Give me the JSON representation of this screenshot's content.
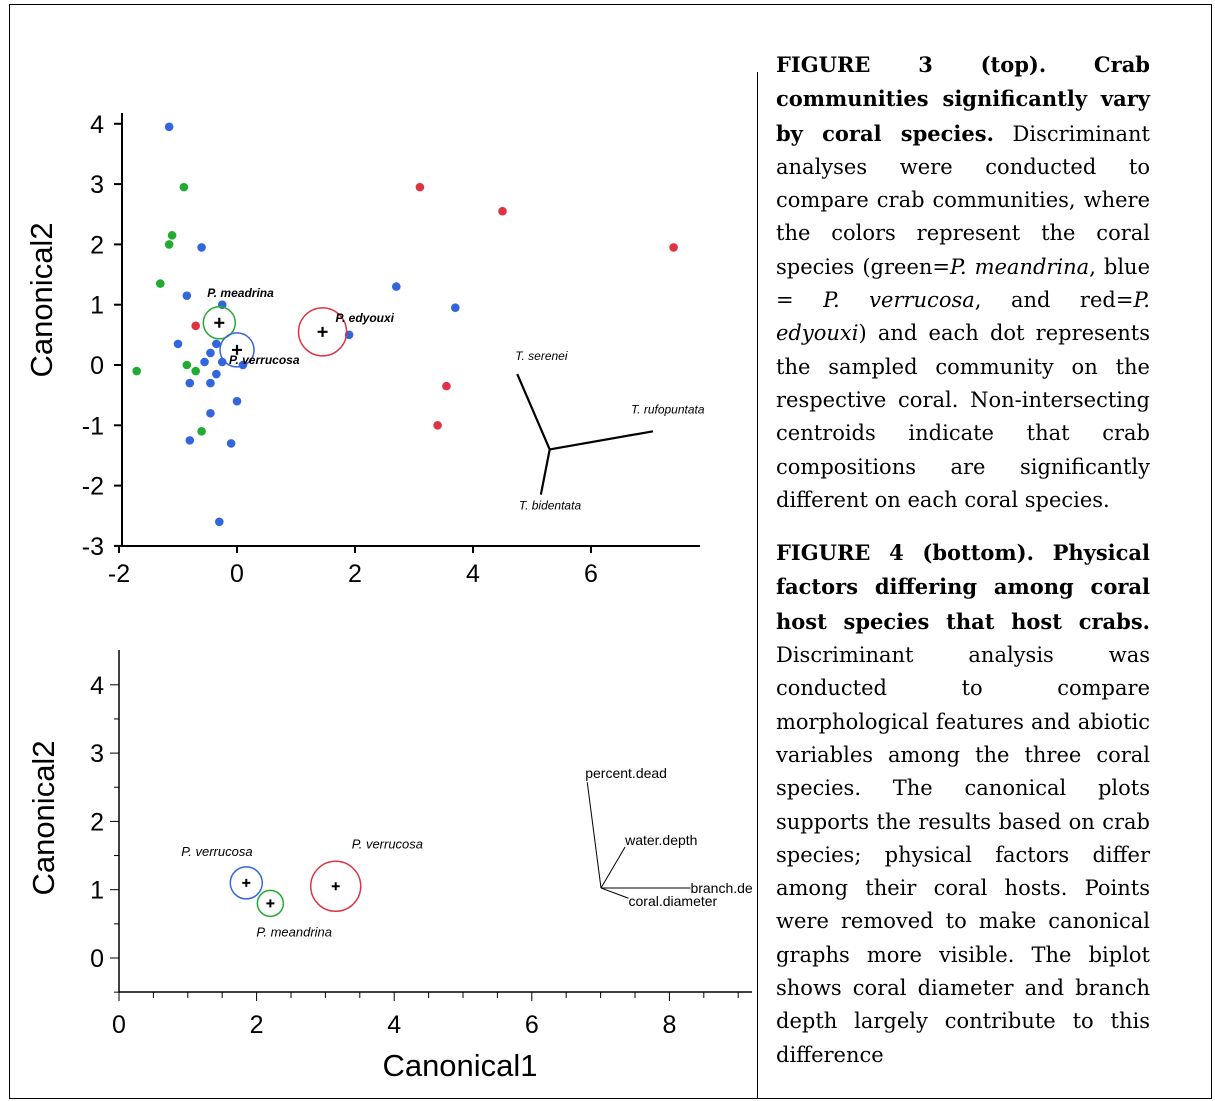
{
  "chart_data": [
    {
      "type": "scatter",
      "title": "",
      "xlabel": "",
      "ylabel": "Canonical2",
      "xlim": [
        -2,
        7.5
      ],
      "ylim": [
        -3,
        4.3
      ],
      "xticks": [
        "-2",
        "0",
        "2",
        "4",
        "6"
      ],
      "yticks": [
        "4",
        "3",
        "2",
        "1",
        "0",
        "-1",
        "-2",
        "-3"
      ],
      "grid": false,
      "colors": {
        "P. meandrina": "#22aa33",
        "P. verrucosa": "#3366dd",
        "P. edyouxi": "#dd3344"
      },
      "series": [
        {
          "name": "P. meandrina",
          "color": "#22aa33",
          "points": [
            [
              -1.7,
              -0.1
            ],
            [
              -1.3,
              1.35
            ],
            [
              -1.15,
              2.0
            ],
            [
              -1.1,
              2.15
            ],
            [
              -0.9,
              2.95
            ],
            [
              -0.85,
              0.0
            ],
            [
              -0.7,
              -0.1
            ],
            [
              -0.6,
              -1.1
            ]
          ]
        },
        {
          "name": "P. verrucosa",
          "color": "#3366dd",
          "points": [
            [
              -1.15,
              3.95
            ],
            [
              -1.0,
              0.35
            ],
            [
              -0.85,
              1.15
            ],
            [
              -0.8,
              -0.3
            ],
            [
              -0.8,
              -1.25
            ],
            [
              -0.6,
              1.95
            ],
            [
              -0.55,
              0.05
            ],
            [
              -0.45,
              0.2
            ],
            [
              -0.45,
              -0.3
            ],
            [
              -0.45,
              -0.8
            ],
            [
              -0.35,
              0.35
            ],
            [
              -0.35,
              -0.15
            ],
            [
              -0.25,
              1.0
            ],
            [
              -0.25,
              0.05
            ],
            [
              -0.1,
              -1.3
            ],
            [
              0.0,
              -0.6
            ],
            [
              0.1,
              0.0
            ],
            [
              -0.3,
              -2.6
            ],
            [
              1.9,
              0.5
            ],
            [
              2.7,
              1.3
            ],
            [
              3.7,
              0.95
            ]
          ]
        },
        {
          "name": "P. edyouxi",
          "color": "#dd3344",
          "points": [
            [
              -0.7,
              0.65
            ],
            [
              3.1,
              2.95
            ],
            [
              4.5,
              2.55
            ],
            [
              7.4,
              1.95
            ],
            [
              3.55,
              -0.35
            ],
            [
              3.4,
              -1.0
            ]
          ]
        }
      ],
      "centroids": [
        {
          "label": "P. meadrina",
          "x": -0.3,
          "y": 0.7,
          "color": "#22aa33"
        },
        {
          "label": "P. verrucosa",
          "x": 0.0,
          "y": 0.25,
          "color": "#3366dd"
        },
        {
          "label": "P. edyouxi",
          "x": 1.45,
          "y": 0.55,
          "color": "#dd3344"
        }
      ],
      "biplot": [
        {
          "label": "T. serenei",
          "dx": -0.55,
          "dy": 1.25
        },
        {
          "label": "T. rufopuntata",
          "dx": 1.75,
          "dy": 0.3
        },
        {
          "label": "T. bidentata",
          "dx": -0.15,
          "dy": -0.75
        }
      ]
    },
    {
      "type": "scatter",
      "title": "",
      "xlabel": "Canonical1",
      "ylabel": "Canonical2",
      "xlim": [
        0,
        9
      ],
      "ylim": [
        -0.5,
        4.3
      ],
      "xticks": [
        "0",
        "2",
        "4",
        "6",
        "8"
      ],
      "yticks": [
        "4",
        "3",
        "2",
        "1",
        "0"
      ],
      "grid": false,
      "centroids": [
        {
          "label": "P. verrucosa",
          "x": 1.85,
          "y": 1.1,
          "color": "#3366dd"
        },
        {
          "label": "P. meandrina",
          "x": 2.2,
          "y": 0.8,
          "color": "#22aa33"
        },
        {
          "label": "P. verrucosa",
          "x": 3.15,
          "y": 1.05,
          "color": "#dd3344"
        }
      ],
      "biplot": [
        {
          "label": "percent.dead",
          "dx": -0.2,
          "dy": 1.55
        },
        {
          "label": "water.depth",
          "dx": 0.35,
          "dy": 0.6
        },
        {
          "label": "branch.de",
          "dx": 1.3,
          "dy": 0.0
        },
        {
          "label": "coral.diameter",
          "dx": 0.4,
          "dy": -0.15
        }
      ]
    }
  ],
  "captions": [
    {
      "bold": "FIGURE 3 (top). Crab communities significantly vary by coral species.",
      "parts": [
        {
          "t": " Discriminant analyses were conducted to compare crab communities, where the colors represent the coral species (green="
        },
        {
          "t": "P. meandrina",
          "i": true
        },
        {
          "t": ", blue = "
        },
        {
          "t": "P. verrucosa",
          "i": true
        },
        {
          "t": ", and red="
        },
        {
          "t": "P. edyouxi",
          "i": true
        },
        {
          "t": ") and each dot represents the sampled community on the respective coral. Non-intersecting centroids indicate that crab compositions are significantly different on each coral species."
        }
      ]
    },
    {
      "bold": "FIGURE 4 (bottom). Physical factors differing among coral host species that host crabs.",
      "parts": [
        {
          "t": " Discriminant analysis was conducted to compare morphological features and abiotic variables among the three coral species. The canonical plots supports the results based on crab species; physical factors differ among their coral hosts. Points were removed to make canonical graphs more visible. The biplot shows coral diameter and branch depth largely contribute to this difference"
        }
      ]
    }
  ]
}
